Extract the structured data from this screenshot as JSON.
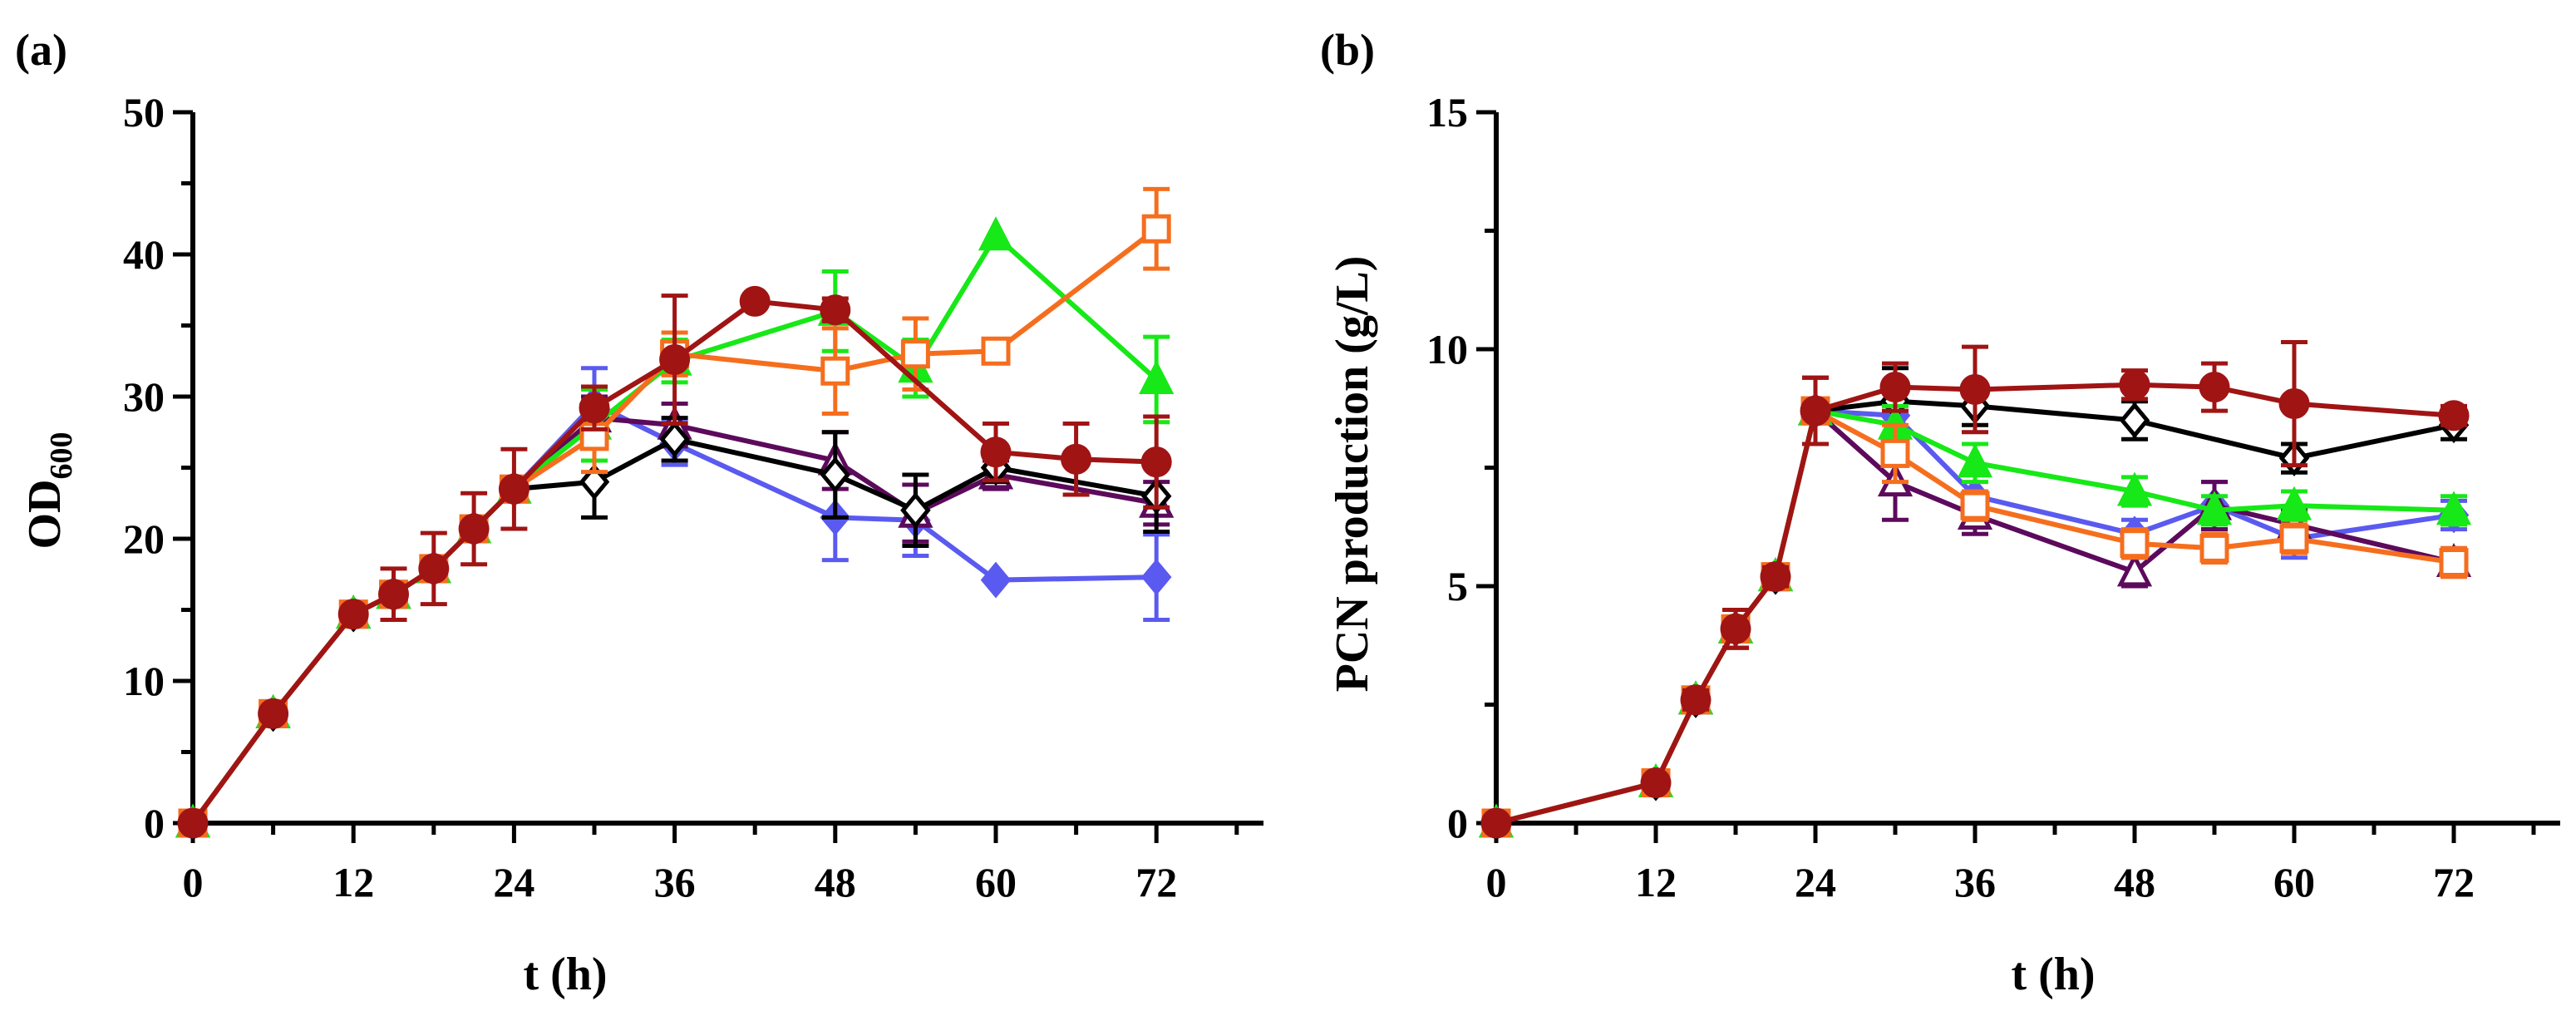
{
  "chart_data": [
    {
      "panel_label": "(a)",
      "type": "line",
      "xlabel": "t (h)",
      "ylabel_main": "OD",
      "ylabel_sub": "600",
      "xlim": [
        0,
        80
      ],
      "ylim": [
        0,
        50
      ],
      "xticks": [
        0,
        12,
        24,
        36,
        48,
        60,
        72
      ],
      "yticks": [
        0,
        10,
        20,
        30,
        40,
        50
      ],
      "series": [
        {
          "name": "diamond-filled",
          "color": "#5a5af0",
          "marker": "diamond-filled",
          "x": [
            0,
            6,
            12,
            15,
            18,
            21,
            24,
            30,
            36,
            48,
            54,
            60,
            72
          ],
          "y": [
            0,
            7.7,
            14.7,
            16.1,
            17.9,
            20.7,
            23.5,
            29.5,
            26.7,
            21.5,
            21.3,
            17.1,
            17.3
          ],
          "err": [
            0,
            0,
            0,
            0,
            0,
            0,
            0,
            2.5,
            1.5,
            3.0,
            2.5,
            0,
            3.0
          ]
        },
        {
          "name": "triangle-open",
          "color": "#5c0a5c",
          "marker": "triangle-open",
          "x": [
            0,
            6,
            12,
            15,
            18,
            21,
            24,
            30,
            36,
            48,
            54,
            60,
            72
          ],
          "y": [
            0,
            7.7,
            14.7,
            16.1,
            17.9,
            20.7,
            23.5,
            28.5,
            28.0,
            25.5,
            21.8,
            24.5,
            22.5
          ],
          "err": [
            0,
            0,
            0,
            0,
            0,
            0,
            0,
            1.5,
            1.5,
            2.0,
            2.0,
            1.0,
            1.5
          ]
        },
        {
          "name": "diamond-open",
          "color": "#000000",
          "marker": "diamond-open",
          "x": [
            0,
            6,
            12,
            15,
            18,
            21,
            24,
            30,
            36,
            48,
            54,
            60,
            72
          ],
          "y": [
            0,
            7.7,
            14.7,
            16.1,
            17.9,
            20.7,
            23.5,
            24.0,
            27.0,
            24.5,
            22.0,
            25.0,
            23.0
          ],
          "err": [
            0,
            0,
            0,
            0,
            0,
            0,
            0,
            2.5,
            1.5,
            3.0,
            2.5,
            1.0,
            2.5
          ]
        },
        {
          "name": "triangle-filled",
          "color": "#17e817",
          "marker": "triangle-filled",
          "x": [
            0,
            6,
            12,
            15,
            18,
            21,
            24,
            30,
            36,
            48,
            54,
            60,
            72
          ],
          "y": [
            0,
            7.7,
            14.7,
            16.1,
            17.9,
            20.7,
            23.5,
            28.0,
            32.5,
            36.0,
            32.0,
            41.3,
            31.2
          ],
          "err": [
            0,
            0,
            0,
            0,
            0,
            0,
            0,
            2.5,
            1.5,
            2.8,
            2.0,
            0,
            3.0
          ]
        },
        {
          "name": "square-open",
          "color": "#f56e1e",
          "marker": "square-open",
          "x": [
            0,
            6,
            12,
            15,
            18,
            21,
            24,
            30,
            36,
            48,
            54,
            60,
            72
          ],
          "y": [
            0,
            7.7,
            14.7,
            16.1,
            17.9,
            20.7,
            23.5,
            27.2,
            33.0,
            31.8,
            33.0,
            33.2,
            41.8
          ],
          "err": [
            0,
            0,
            0,
            0,
            0,
            0,
            0,
            2.5,
            1.5,
            3.0,
            2.5,
            0,
            2.8
          ]
        },
        {
          "name": "circle-filled",
          "color": "#a01414",
          "marker": "circle-filled",
          "x": [
            0,
            6,
            12,
            15,
            18,
            21,
            24,
            30,
            36,
            42,
            48,
            60,
            66,
            72
          ],
          "y": [
            0,
            7.7,
            14.7,
            16.1,
            17.9,
            20.7,
            23.5,
            29.2,
            32.6,
            36.7,
            36.1,
            26.1,
            25.6,
            25.4
          ],
          "err": [
            0,
            0,
            0,
            1.8,
            2.5,
            2.5,
            2.8,
            1.5,
            4.5,
            0,
            0.8,
            2.0,
            2.5,
            3.2
          ]
        }
      ]
    },
    {
      "panel_label": "(b)",
      "type": "line",
      "xlabel": "t (h)",
      "ylabel_main": "PCN production (g/L)",
      "xlim": [
        0,
        80
      ],
      "ylim": [
        0,
        15
      ],
      "xticks": [
        0,
        12,
        24,
        36,
        48,
        60,
        72
      ],
      "yticks": [
        0,
        5,
        10,
        15
      ],
      "series": [
        {
          "name": "diamond-filled",
          "color": "#5a5af0",
          "marker": "diamond-filled",
          "x": [
            0,
            12,
            15,
            18,
            21,
            24,
            30,
            36,
            48,
            54,
            60,
            72
          ],
          "y": [
            0,
            0.85,
            2.6,
            4.1,
            5.2,
            8.7,
            8.6,
            6.9,
            6.1,
            6.7,
            6.0,
            6.5
          ],
          "err": [
            0,
            0,
            0.2,
            0.4,
            0.2,
            0.7,
            0.5,
            0.5,
            0.3,
            0.5,
            0.4,
            0.3
          ]
        },
        {
          "name": "triangle-open",
          "color": "#5c0a5c",
          "marker": "triangle-open",
          "x": [
            0,
            12,
            15,
            18,
            21,
            24,
            30,
            36,
            48,
            54,
            60,
            72
          ],
          "y": [
            0,
            0.85,
            2.6,
            4.1,
            5.2,
            8.7,
            7.2,
            6.5,
            5.3,
            6.7,
            6.3,
            5.5
          ],
          "err": [
            0,
            0,
            0.2,
            0.4,
            0.2,
            0.7,
            0.8,
            0.4,
            0.3,
            0.5,
            0.3,
            0.3
          ]
        },
        {
          "name": "diamond-open",
          "color": "#000000",
          "marker": "diamond-open",
          "x": [
            0,
            12,
            15,
            18,
            21,
            24,
            30,
            36,
            48,
            60,
            72
          ],
          "y": [
            0,
            0.85,
            2.6,
            4.1,
            5.2,
            8.7,
            8.9,
            8.8,
            8.5,
            7.7,
            8.4
          ],
          "err": [
            0,
            0,
            0.2,
            0.4,
            0.2,
            0.7,
            0.7,
            0.4,
            0.4,
            0.3,
            0.3
          ]
        },
        {
          "name": "triangle-filled",
          "color": "#17e817",
          "marker": "triangle-filled",
          "x": [
            0,
            12,
            15,
            18,
            21,
            24,
            30,
            36,
            48,
            54,
            60,
            72
          ],
          "y": [
            0,
            0.85,
            2.6,
            4.1,
            5.2,
            8.7,
            8.4,
            7.6,
            7.0,
            6.6,
            6.7,
            6.6
          ],
          "err": [
            0,
            0,
            0.2,
            0.4,
            0.2,
            0.7,
            0.4,
            0.4,
            0.3,
            0.3,
            0.3,
            0.3
          ]
        },
        {
          "name": "square-open",
          "color": "#f56e1e",
          "marker": "square-open",
          "x": [
            0,
            12,
            15,
            18,
            21,
            24,
            30,
            36,
            48,
            54,
            60,
            72
          ],
          "y": [
            0,
            0.85,
            2.6,
            4.1,
            5.2,
            8.7,
            7.8,
            6.7,
            5.9,
            5.8,
            6.0,
            5.5
          ],
          "err": [
            0,
            0,
            0.2,
            0.4,
            0.2,
            0.7,
            0.6,
            0.3,
            0.3,
            0.3,
            0.3,
            0.3
          ]
        },
        {
          "name": "circle-filled",
          "color": "#a01414",
          "marker": "circle-filled",
          "x": [
            0,
            12,
            15,
            18,
            21,
            24,
            30,
            36,
            48,
            54,
            60,
            72
          ],
          "y": [
            0,
            0.85,
            2.6,
            4.1,
            5.2,
            8.7,
            9.2,
            9.15,
            9.25,
            9.2,
            8.85,
            8.6
          ],
          "err": [
            0,
            0,
            0.2,
            0.4,
            0.2,
            0.7,
            0.5,
            0.9,
            0.3,
            0.5,
            1.3,
            0.2
          ]
        }
      ]
    }
  ]
}
